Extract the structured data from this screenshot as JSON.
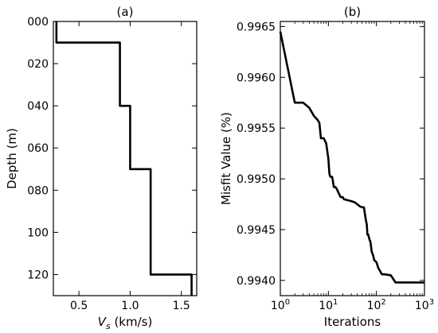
{
  "chart_data": [
    {
      "type": "line",
      "title": "(a)",
      "xlabel": "V",
      "xlabel_sub": "s",
      "xlabel_unit": " (km/s)",
      "ylabel": "Depth (m)",
      "xlim": [
        0.25,
        1.65
      ],
      "ylim": [
        130,
        0
      ],
      "y_inverted": true,
      "xticks": [
        0.5,
        1.0,
        1.5
      ],
      "xtick_labels": [
        "0.5",
        "1.0",
        "1.5"
      ],
      "yticks": [
        0,
        20,
        40,
        60,
        80,
        100,
        120
      ],
      "ytick_labels": [
        "000",
        "020",
        "040",
        "060",
        "080",
        "100",
        "120"
      ],
      "grid": false,
      "series": [
        {
          "x": [
            0.28,
            0.28,
            0.9,
            0.9,
            1.0,
            1.0,
            1.2,
            1.2,
            1.6,
            1.6
          ],
          "y": [
            0,
            10,
            10,
            40,
            40,
            70,
            70,
            120,
            120,
            130
          ]
        }
      ]
    },
    {
      "type": "line",
      "title": "(b)",
      "xlabel": "Iterations",
      "ylabel": "Misfit Value (%)",
      "xscale": "log",
      "xlim": [
        1,
        1000
      ],
      "ylim": [
        0.99385,
        0.99655
      ],
      "xticks": [
        1,
        10,
        100,
        1000
      ],
      "xtick_labels": [
        "10",
        "10",
        "10",
        "10"
      ],
      "xtick_exponents": [
        "0",
        "1",
        "2",
        "3"
      ],
      "yticks": [
        0.994,
        0.9945,
        0.995,
        0.9955,
        0.996,
        0.9965
      ],
      "ytick_labels": [
        "0.9940",
        "0.9945",
        "0.9950",
        "0.9955",
        "0.9960",
        "0.9965"
      ],
      "grid": false,
      "series": [
        {
          "x": [
            1,
            2,
            3,
            4,
            5,
            6,
            6.5,
            7,
            8,
            9,
            10,
            10.5,
            11,
            12,
            13,
            14,
            15,
            16,
            18,
            20,
            21,
            25,
            30,
            35,
            40,
            45,
            50,
            55,
            60,
            63,
            65,
            68,
            70,
            72,
            75,
            78,
            80,
            85,
            90,
            100,
            110,
            120,
            130,
            150,
            200,
            220,
            250,
            300,
            400,
            600,
            1000
          ],
          "y": [
            0.99645,
            0.99575,
            0.99575,
            0.9957,
            0.99562,
            0.99558,
            0.99555,
            0.9954,
            0.9954,
            0.99535,
            0.9952,
            0.99505,
            0.99502,
            0.99502,
            0.99492,
            0.99492,
            0.9949,
            0.99487,
            0.99482,
            0.99482,
            0.9948,
            0.99479,
            0.99478,
            0.99477,
            0.99475,
            0.99473,
            0.99472,
            0.99472,
            0.9946,
            0.99455,
            0.99445,
            0.99445,
            0.99442,
            0.9944,
            0.99438,
            0.99432,
            0.99428,
            0.99425,
            0.9942,
            0.99418,
            0.99412,
            0.99409,
            0.99406,
            0.99406,
            0.99405,
            0.99402,
            0.99398,
            0.99398,
            0.99398,
            0.99398,
            0.99398
          ]
        }
      ]
    }
  ]
}
